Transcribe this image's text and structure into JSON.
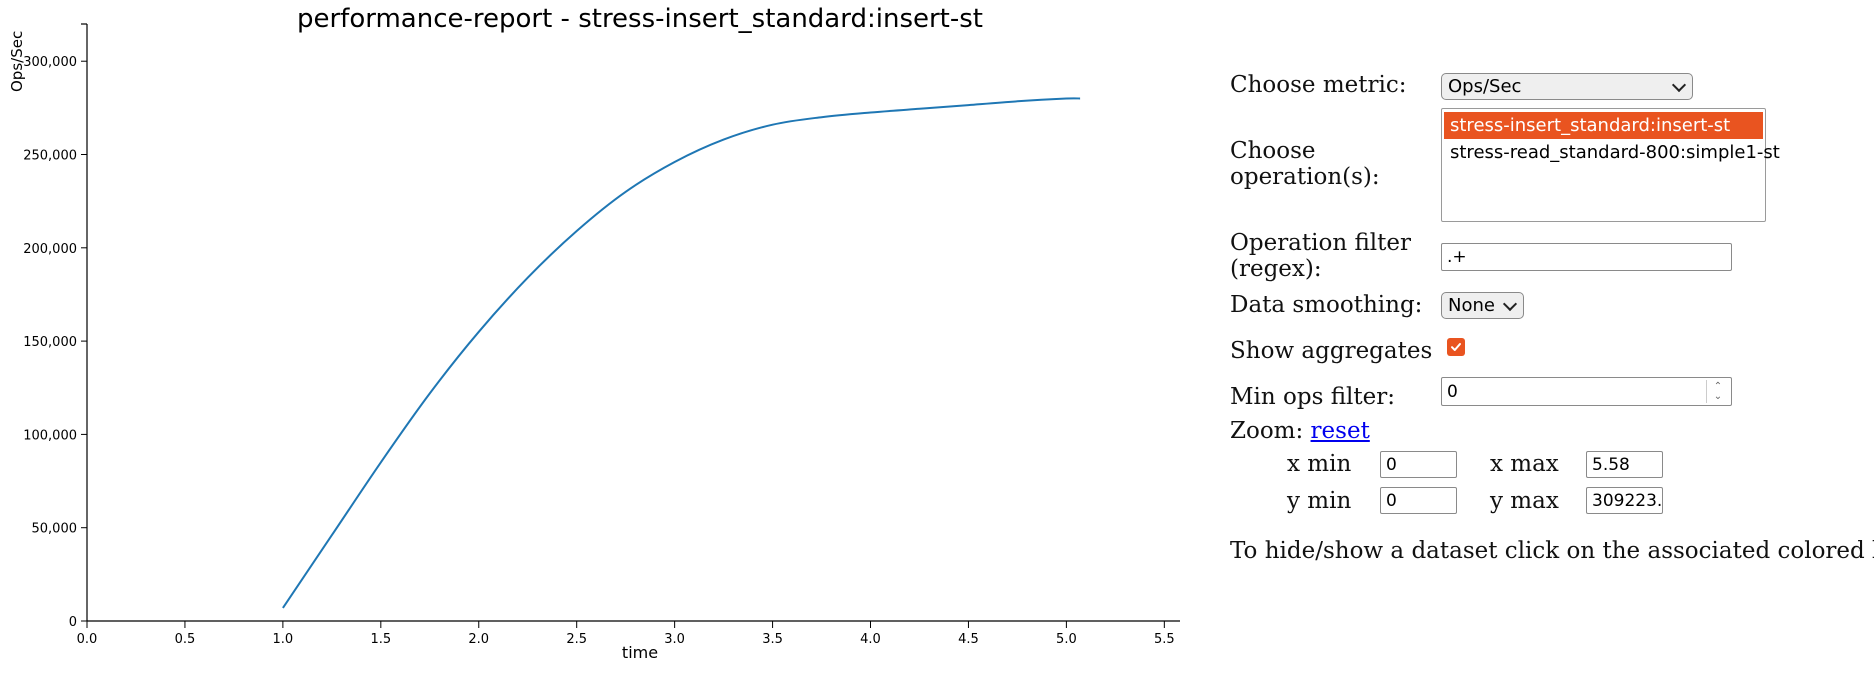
{
  "chart_data": {
    "type": "line",
    "title": "performance-report - stress-insert_standard:insert-st",
    "xlabel": "time",
    "ylabel": "Ops/Sec",
    "xlim": [
      0,
      5.58
    ],
    "ylim": [
      0,
      309223
    ],
    "x_ticks": [
      "0.0",
      "0.5",
      "1.0",
      "1.5",
      "2.0",
      "2.5",
      "3.0",
      "3.5",
      "4.0",
      "4.5",
      "5.0",
      "5.5"
    ],
    "y_ticks": [
      "0",
      "50,000",
      "100,000",
      "150,000",
      "200,000",
      "250,000",
      "300,000"
    ],
    "series": [
      {
        "name": "stress-insert_standard:insert-st",
        "color": "#1f77b4",
        "x": [
          1.0,
          1.25,
          1.5,
          1.75,
          2.0,
          2.25,
          2.5,
          2.75,
          3.0,
          3.25,
          3.5,
          3.75,
          4.0,
          4.25,
          4.5,
          4.75,
          5.0,
          5.07
        ],
        "y": [
          7000,
          46000,
          85000,
          122000,
          155000,
          184000,
          209000,
          230000,
          246000,
          258000,
          266000,
          270000,
          272500,
          274500,
          276500,
          278500,
          280000,
          280000
        ]
      }
    ]
  },
  "controls": {
    "metric_label": "Choose metric:",
    "metric_value": "Ops/Sec",
    "operations_label_line1": "Choose",
    "operations_label_line2": "operation(s):",
    "operations": [
      "stress-insert_standard:insert-st",
      "stress-read_standard-800:simple1-st"
    ],
    "selected_operation": "stress-insert_standard:insert-st",
    "filter_label_line1": "Operation filter",
    "filter_label_line2": "(regex):",
    "filter_value": ".+",
    "smoothing_label": "Data smoothing:",
    "smoothing_value": "None",
    "aggregates_label": "Show aggregates",
    "aggregates_checked": true,
    "minops_label": "Min ops filter:",
    "minops_value": "0",
    "zoom_label": "Zoom:",
    "zoom_reset": "reset",
    "xmin_label": "x min",
    "xmin_value": "0",
    "xmax_label": "x max",
    "xmax_value": "5.58",
    "ymin_label": "y min",
    "ymin_value": "0",
    "ymax_label": "y max",
    "ymax_value": "309223.",
    "hint": "To hide/show a dataset click on the associated colored box"
  },
  "colors": {
    "accent": "#e95420",
    "link": "#0000ee",
    "series": "#1f77b4"
  }
}
